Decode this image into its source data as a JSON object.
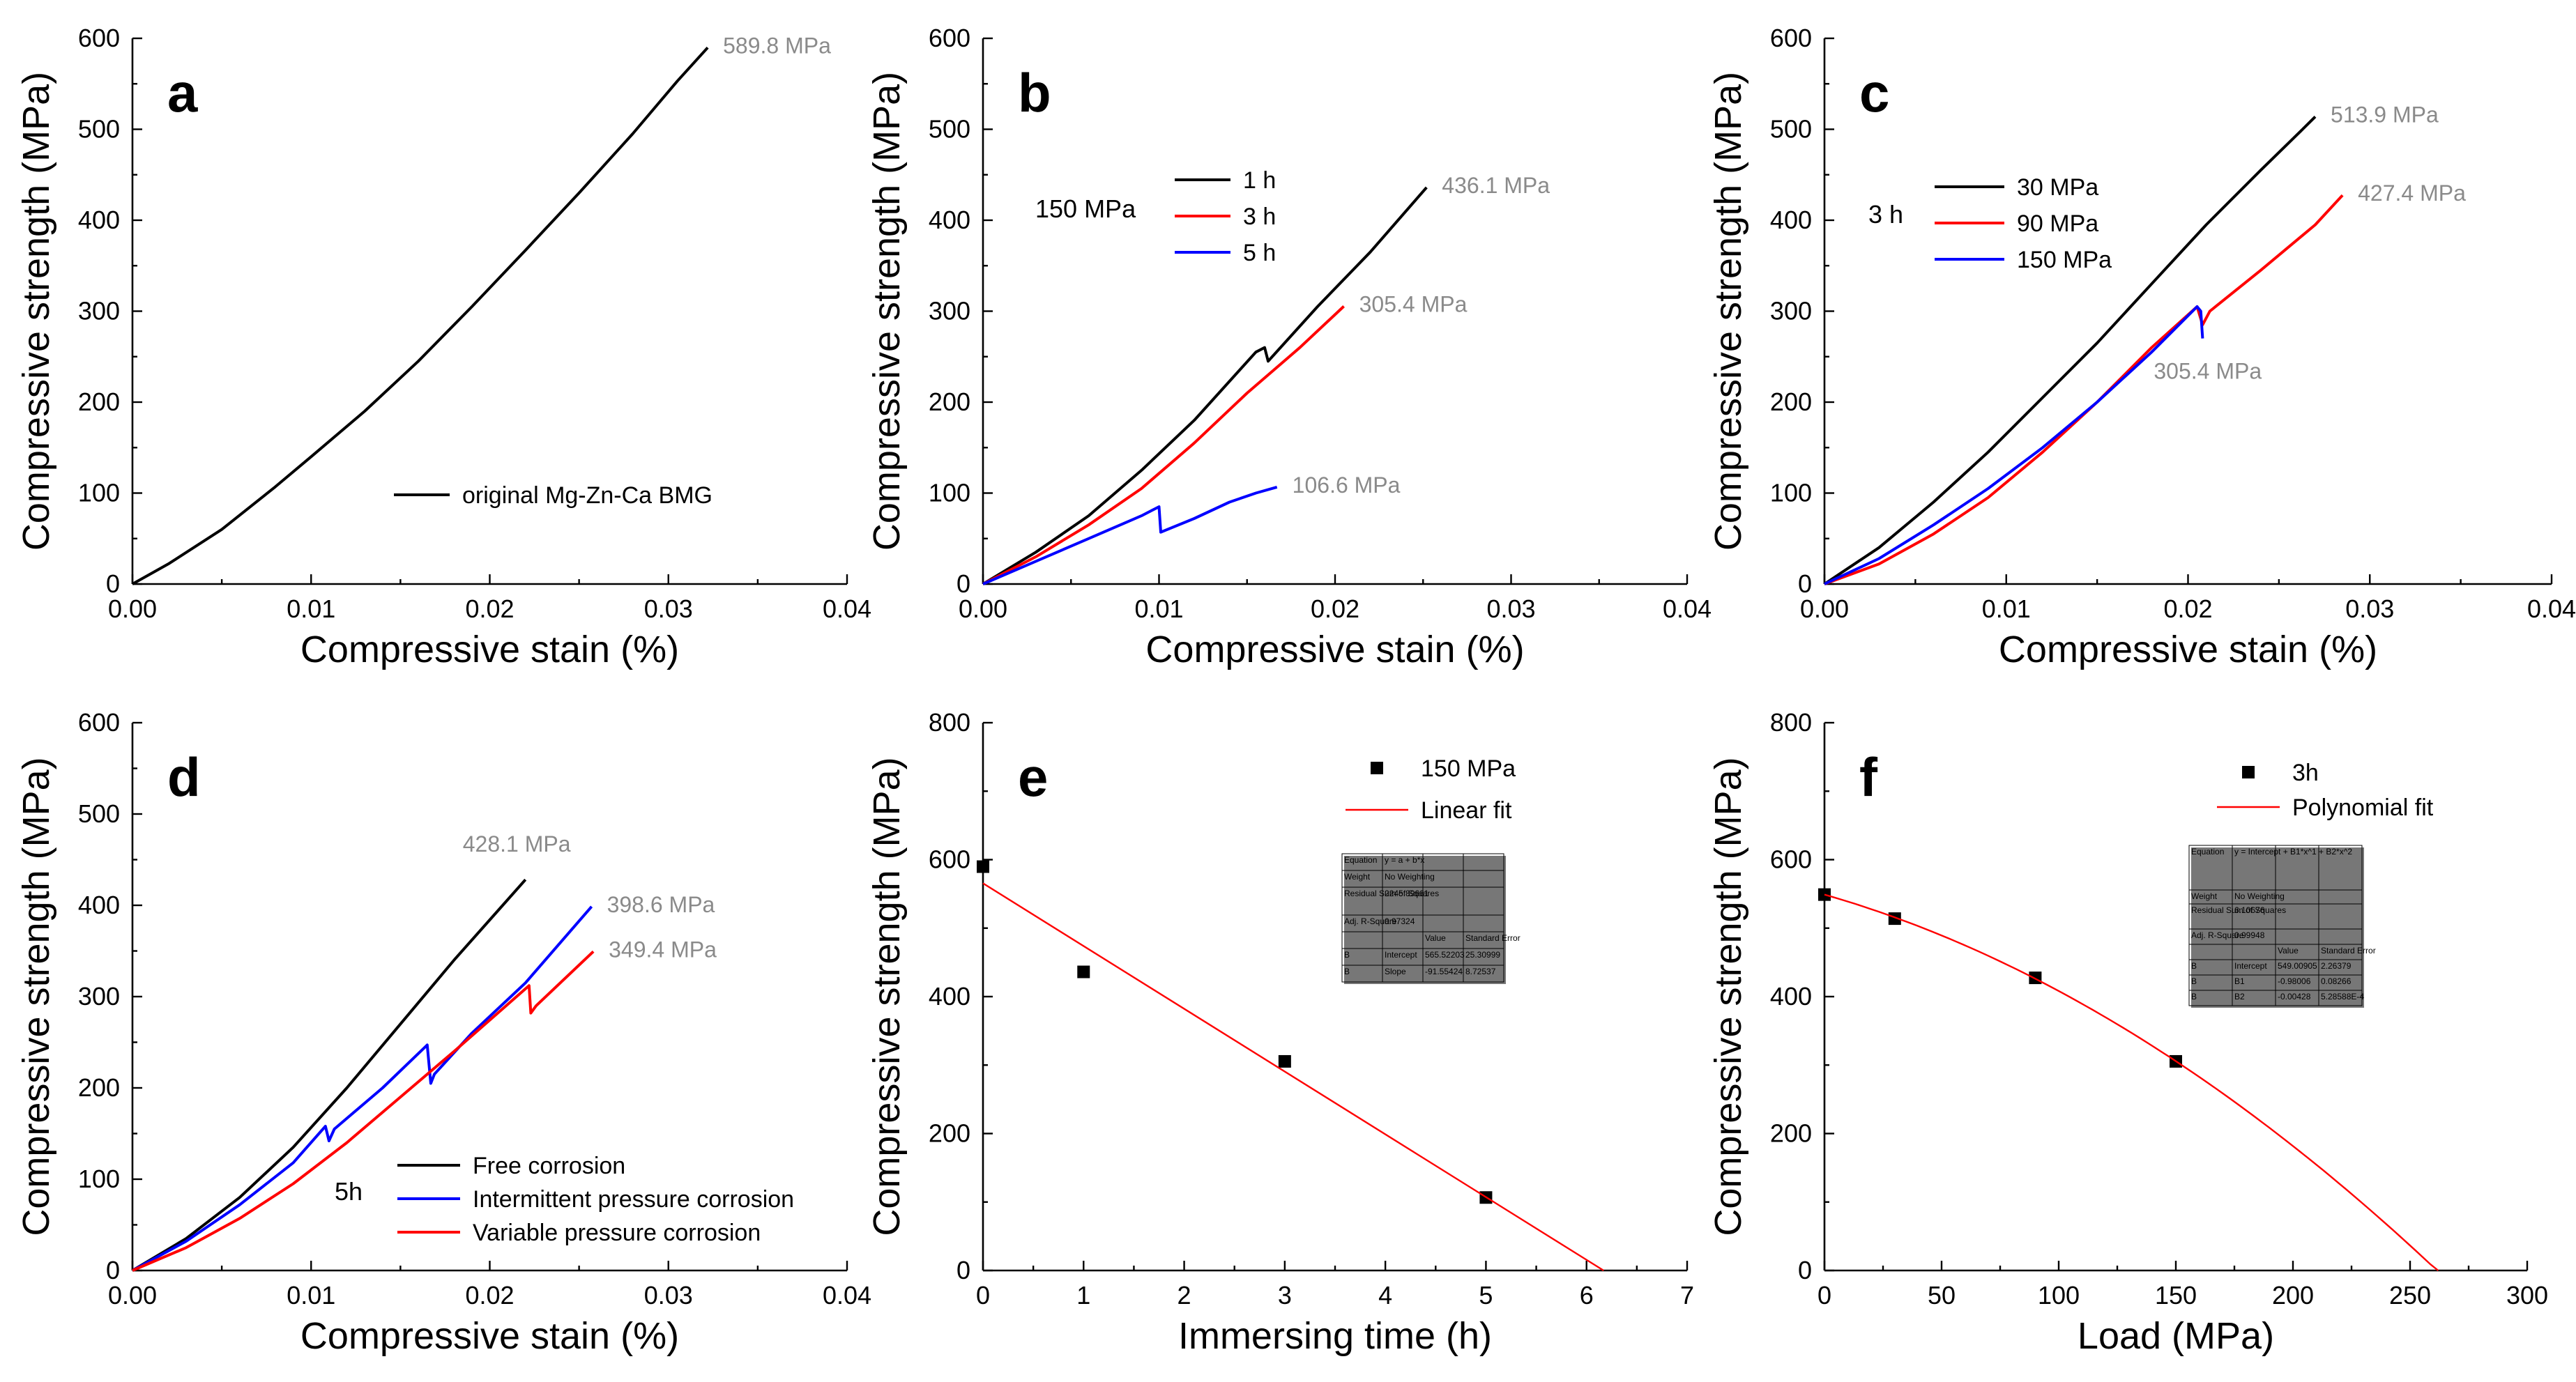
{
  "chart_data": [
    {
      "id": "a",
      "type": "line",
      "panel_label": "a",
      "xlabel": "Compressive stain (%)",
      "ylabel": "Compressive strength (MPa)",
      "xlim": [
        0,
        0.04
      ],
      "ylim": [
        0,
        600
      ],
      "xticks": [
        0,
        0.01,
        0.02,
        0.03,
        0.04
      ],
      "xtick_labels": [
        "0.00",
        "0.01",
        "0.02",
        "0.03",
        "0.04"
      ],
      "yticks": [
        0,
        100,
        200,
        300,
        400,
        500,
        600
      ],
      "ytick_labels": [
        "0",
        "100",
        "200",
        "300",
        "400",
        "500",
        "600"
      ],
      "legend_position": "bottom-right",
      "series": [
        {
          "name": "original Mg-Zn-Ca BMG",
          "color": "#000000",
          "x": [
            0,
            0.002,
            0.005,
            0.008,
            0.01,
            0.013,
            0.016,
            0.019,
            0.022,
            0.025,
            0.028,
            0.0305,
            0.0322
          ],
          "y": [
            0,
            22,
            60,
            107,
            140,
            190,
            245,
            305,
            367,
            430,
            495,
            553,
            589.8
          ]
        }
      ],
      "annotations": [
        {
          "text": "589.8 MPa",
          "x": 0.0322,
          "y": 589.8,
          "place": "right"
        }
      ]
    },
    {
      "id": "b",
      "type": "line",
      "panel_label": "b",
      "xlabel": "Compressive stain (%)",
      "ylabel": "Compressive strength (MPa)",
      "xlim": [
        0,
        0.04
      ],
      "ylim": [
        0,
        600
      ],
      "xticks": [
        0,
        0.01,
        0.02,
        0.03,
        0.04
      ],
      "xtick_labels": [
        "0.00",
        "0.01",
        "0.02",
        "0.03",
        "0.04"
      ],
      "yticks": [
        0,
        100,
        200,
        300,
        400,
        500,
        600
      ],
      "ytick_labels": [
        "0",
        "100",
        "200",
        "300",
        "400",
        "500",
        "600"
      ],
      "legend_title": "150 MPa",
      "legend_position": "top-left",
      "series": [
        {
          "name": "1 h",
          "color": "#000000",
          "x": [
            0,
            0.003,
            0.006,
            0.009,
            0.012,
            0.0155,
            0.016,
            0.0162,
            0.019,
            0.022,
            0.0252
          ],
          "y": [
            0,
            35,
            75,
            125,
            180,
            255,
            260,
            245,
            305,
            365,
            436.1
          ]
        },
        {
          "name": "3 h",
          "color": "#ff0000",
          "x": [
            0,
            0.003,
            0.006,
            0.009,
            0.012,
            0.015,
            0.018,
            0.0205
          ],
          "y": [
            0,
            30,
            65,
            105,
            155,
            210,
            260,
            305.4
          ]
        },
        {
          "name": "5 h",
          "color": "#0000ff",
          "x": [
            0,
            0.003,
            0.006,
            0.009,
            0.01,
            0.0101,
            0.012,
            0.014,
            0.0155,
            0.0167
          ],
          "y": [
            0,
            25,
            50,
            75,
            85,
            57,
            72,
            90,
            100,
            106.6
          ]
        }
      ],
      "annotations": [
        {
          "text": "436.1 MPa",
          "x": 0.0252,
          "y": 436.1,
          "place": "right"
        },
        {
          "text": "305.4 MPa",
          "x": 0.0205,
          "y": 305.4,
          "place": "right"
        },
        {
          "text": "106.6 MPa",
          "x": 0.0167,
          "y": 106.6,
          "place": "right"
        }
      ]
    },
    {
      "id": "c",
      "type": "line",
      "panel_label": "c",
      "xlabel": "Compressive stain (%)",
      "ylabel": "Compressive strength (MPa)",
      "xlim": [
        0,
        0.04
      ],
      "ylim": [
        0,
        600
      ],
      "xticks": [
        0,
        0.01,
        0.02,
        0.03,
        0.04
      ],
      "xtick_labels": [
        "0.00",
        "0.01",
        "0.02",
        "0.03",
        "0.04"
      ],
      "yticks": [
        0,
        100,
        200,
        300,
        400,
        500,
        600
      ],
      "ytick_labels": [
        "0",
        "100",
        "200",
        "300",
        "400",
        "500",
        "600"
      ],
      "legend_title": "3 h",
      "legend_position": "top-left",
      "series": [
        {
          "name": "30   MPa",
          "color": "#000000",
          "x": [
            0,
            0.003,
            0.006,
            0.009,
            0.012,
            0.015,
            0.018,
            0.021,
            0.024,
            0.0263,
            0.027
          ],
          "y": [
            0,
            40,
            90,
            145,
            205,
            265,
            330,
            395,
            455,
            500,
            513.9
          ]
        },
        {
          "name": "90   MPa",
          "color": "#ff0000",
          "x": [
            0,
            0.003,
            0.006,
            0.009,
            0.012,
            0.015,
            0.018,
            0.0205,
            0.0208,
            0.0212,
            0.024,
            0.027,
            0.0285
          ],
          "y": [
            0,
            22,
            55,
            95,
            145,
            200,
            260,
            305,
            285,
            300,
            345,
            395,
            427.4
          ]
        },
        {
          "name": "150 MPa",
          "color": "#0000ff",
          "x": [
            0,
            0.003,
            0.006,
            0.009,
            0.012,
            0.015,
            0.018,
            0.0205,
            0.0207,
            0.0208
          ],
          "y": [
            0,
            28,
            65,
            105,
            150,
            200,
            255,
            305,
            300,
            270
          ]
        }
      ],
      "annotations": [
        {
          "text": "513.9 MPa",
          "x": 0.027,
          "y": 513.9,
          "place": "right"
        },
        {
          "text": "427.4 MPa",
          "x": 0.0285,
          "y": 427.4,
          "place": "right"
        },
        {
          "text": "305.4 MPa",
          "x": 0.0208,
          "y": 270,
          "place": "below"
        }
      ]
    },
    {
      "id": "d",
      "type": "line",
      "panel_label": "d",
      "xlabel": "Compressive stain (%)",
      "ylabel": "Compressive strength (MPa)",
      "xlim": [
        0,
        0.04
      ],
      "ylim": [
        0,
        600
      ],
      "xticks": [
        0,
        0.01,
        0.02,
        0.03,
        0.04
      ],
      "xtick_labels": [
        "0.00",
        "0.01",
        "0.02",
        "0.03",
        "0.04"
      ],
      "yticks": [
        0,
        100,
        200,
        300,
        400,
        500,
        600
      ],
      "ytick_labels": [
        "0",
        "100",
        "200",
        "300",
        "400",
        "500",
        "600"
      ],
      "legend_title": "5h",
      "legend_position": "bottom-left",
      "series": [
        {
          "name": "Free corrosion",
          "color": "#000000",
          "x": [
            0,
            0.003,
            0.006,
            0.009,
            0.012,
            0.015,
            0.018,
            0.0205,
            0.022
          ],
          "y": [
            0,
            35,
            80,
            135,
            200,
            270,
            340,
            395,
            428.1
          ]
        },
        {
          "name": "Intermittent pressure corrosion",
          "color": "#0000ff",
          "x": [
            0,
            0.003,
            0.006,
            0.009,
            0.0108,
            0.011,
            0.0113,
            0.014,
            0.0165,
            0.0167,
            0.0169,
            0.019,
            0.022,
            0.0257
          ],
          "y": [
            0,
            32,
            72,
            118,
            158,
            142,
            155,
            200,
            247,
            205,
            215,
            260,
            315,
            398.6
          ]
        },
        {
          "name": "Variable pressure corrosion",
          "color": "#ff0000",
          "x": [
            0,
            0.003,
            0.006,
            0.009,
            0.012,
            0.015,
            0.018,
            0.0222,
            0.0223,
            0.0226,
            0.0258
          ],
          "y": [
            0,
            25,
            57,
            95,
            140,
            190,
            240,
            312,
            282,
            290,
            349.4
          ]
        }
      ],
      "annotations": [
        {
          "text": "428.1 MPa",
          "x": 0.022,
          "y": 428.1,
          "place": "above"
        },
        {
          "text": "398.6 MPa",
          "x": 0.0257,
          "y": 398.6,
          "place": "right"
        },
        {
          "text": "349.4 MPa",
          "x": 0.0258,
          "y": 349.4,
          "place": "right"
        }
      ]
    },
    {
      "id": "e",
      "type": "scatter",
      "panel_label": "e",
      "xlabel": "Immersing time (h)",
      "ylabel": "Compressive strength (MPa)",
      "xlim": [
        0,
        7
      ],
      "ylim": [
        0,
        800
      ],
      "xticks": [
        0,
        1,
        2,
        3,
        4,
        5,
        6,
        7
      ],
      "xtick_labels": [
        "0",
        "1",
        "2",
        "3",
        "4",
        "5",
        "6",
        "7"
      ],
      "yticks": [
        0,
        200,
        400,
        600,
        800
      ],
      "ytick_labels": [
        "0",
        "200",
        "400",
        "600",
        "800"
      ],
      "legend_position": "top-right",
      "series": [
        {
          "name": "150 MPa",
          "kind": "points",
          "color": "#000000",
          "x": [
            0,
            1,
            3,
            5
          ],
          "y": [
            589.8,
            436.1,
            305.4,
            106.6
          ]
        },
        {
          "name": "Linear fit",
          "kind": "line",
          "color": "#ff0000",
          "x": [
            0,
            6.17
          ],
          "y": [
            565.52,
            0
          ]
        }
      ],
      "fit_table": {
        "rows": [
          [
            "Equation",
            "y = a + b*x",
            "",
            ""
          ],
          [
            "Weight",
            "No Weighting",
            "",
            ""
          ],
          [
            "Residual Sum of Squares",
            "2245.89661",
            "",
            ""
          ],
          [
            "Adj. R-Square",
            "0.97324",
            "",
            ""
          ],
          [
            "",
            "",
            "Value",
            "Standard Error"
          ],
          [
            "B",
            "Intercept",
            "565.52203",
            "25.30999"
          ],
          [
            "B",
            "Slope",
            "-91.55424",
            "8.72537"
          ]
        ]
      }
    },
    {
      "id": "f",
      "type": "scatter",
      "panel_label": "f",
      "xlabel": "Load (MPa)",
      "ylabel": "Compressive strength (MPa)",
      "xlim": [
        0,
        300
      ],
      "ylim": [
        0,
        800
      ],
      "xticks": [
        0,
        50,
        100,
        150,
        200,
        250,
        300
      ],
      "xtick_labels": [
        "0",
        "50",
        "100",
        "150",
        "200",
        "250",
        "300"
      ],
      "yticks": [
        0,
        200,
        400,
        600,
        800
      ],
      "ytick_labels": [
        "0",
        "200",
        "400",
        "600",
        "800"
      ],
      "legend_position": "top-right",
      "series": [
        {
          "name": "3h",
          "kind": "points",
          "color": "#000000",
          "x": [
            0,
            30,
            90,
            150
          ],
          "y": [
            549,
            513.9,
            427.4,
            305.4
          ]
        },
        {
          "name": "Polynomial fit",
          "kind": "curve",
          "color": "#ff0000",
          "poly": {
            "b0": 549.0,
            "b1": -0.98006,
            "b2": -0.00428
          },
          "x_range": [
            0,
            262
          ]
        }
      ],
      "fit_table": {
        "rows": [
          [
            "Equation",
            "y = Intercept + B1*x^1 + B2*x^2",
            "",
            ""
          ],
          [
            "Weight",
            "No Weighting",
            "",
            ""
          ],
          [
            "Residual Sum of Squares",
            "6.10676",
            "",
            ""
          ],
          [
            "Adj. R-Square",
            "0.99948",
            "",
            ""
          ],
          [
            "",
            "",
            "Value",
            "Standard Error"
          ],
          [
            "B",
            "Intercept",
            "549.00905",
            "2.26379"
          ],
          [
            "B",
            "B1",
            "-0.98006",
            "0.08266"
          ],
          [
            "B",
            "B2",
            "-0.00428",
            "5.28588E-4"
          ]
        ]
      }
    }
  ]
}
